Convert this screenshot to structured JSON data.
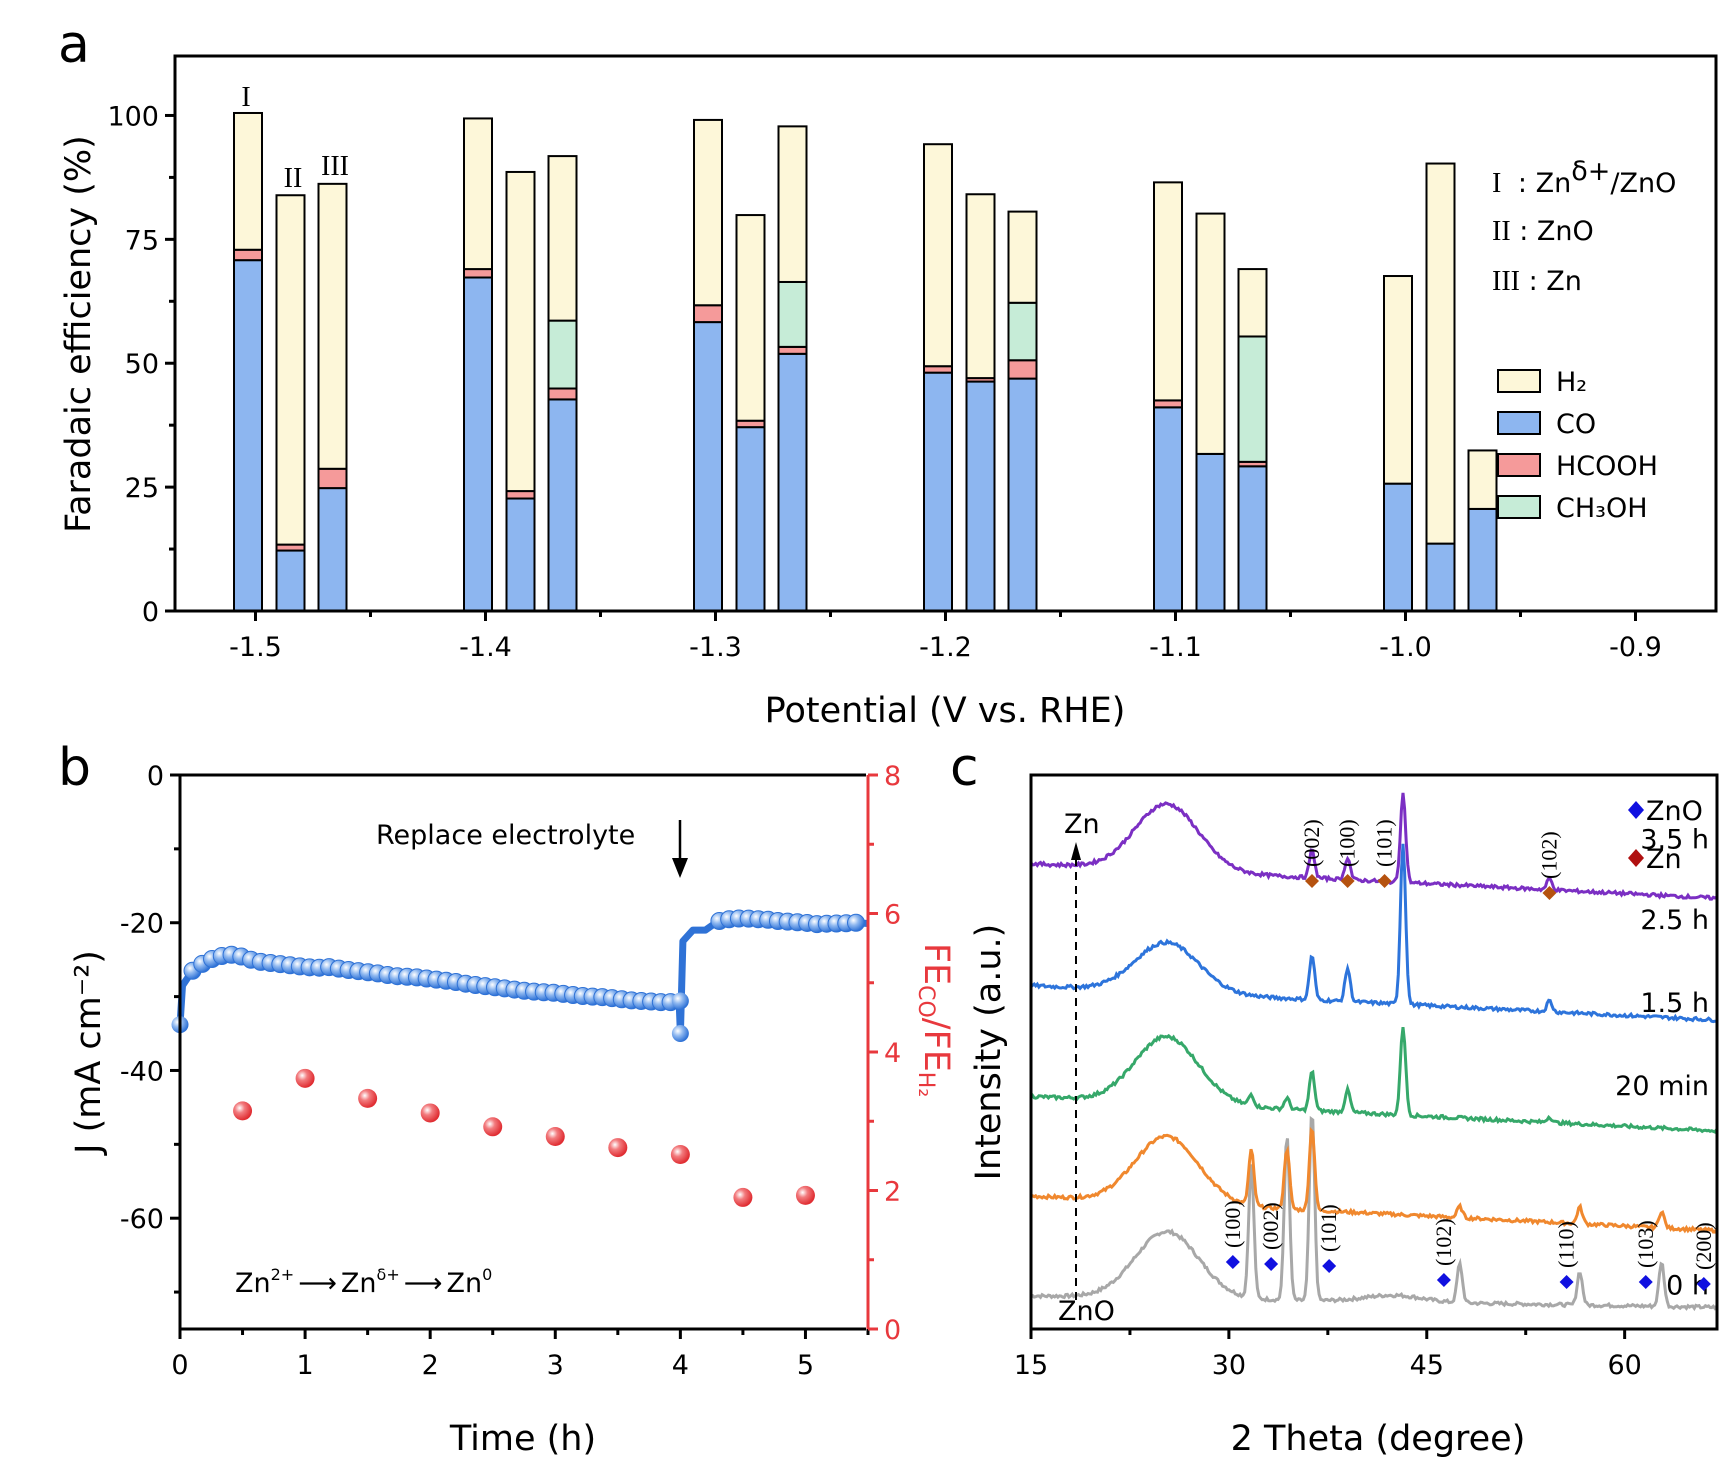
{
  "figure": {
    "panel_labels": [
      "a",
      "b",
      "c"
    ]
  },
  "chart_data": [
    {
      "panel": "a",
      "type": "bar",
      "stacked": true,
      "xlabel": "Potential (V vs. RHE)",
      "ylabel": "Faradaic efficiency (%)",
      "ylim": [
        0,
        112
      ],
      "xlim": [
        -1.535,
        -0.865
      ],
      "xticks": [
        "-1.5",
        "-1.4",
        "-1.3",
        "-1.2",
        "-1.1",
        "-1.0",
        "-0.9"
      ],
      "xtick_values": [
        -1.5,
        -1.4,
        -1.3,
        -1.2,
        -1.1,
        -1.0,
        -0.9
      ],
      "yticks": [
        "0",
        "25",
        "50",
        "75",
        "100"
      ],
      "ytick_values": [
        0,
        25,
        50,
        75,
        100
      ],
      "catalysts": [
        "I",
        "II",
        "III"
      ],
      "catalyst_legend": [
        {
          "roman": "I",
          "text": " : Zn",
          "sup": "δ+",
          "after": "/ZnO"
        },
        {
          "roman": "II",
          "text": " : ZnO",
          "sup": "",
          "after": ""
        },
        {
          "roman": "III",
          "text": " : Zn",
          "sup": "",
          "after": ""
        }
      ],
      "series_legend": [
        {
          "name": "H₂",
          "key": "H2",
          "color": "#fdf7d9"
        },
        {
          "name": "CO",
          "key": "CO",
          "color": "#8db6f0"
        },
        {
          "name": "HCOOH",
          "key": "HCOOH",
          "color": "#f59a9a"
        },
        {
          "name": "CH₃OH",
          "key": "CH3OH",
          "color": "#c6ecd7"
        }
      ],
      "stack_order": [
        "CO",
        "HCOOH",
        "CH3OH",
        "H2"
      ],
      "groups": [
        {
          "potential": -1.5,
          "bars": [
            {
              "catalyst": "I",
              "CO": 70.8,
              "HCOOH": 2.1,
              "CH3OH": 0,
              "H2": 27.6
            },
            {
              "catalyst": "II",
              "CO": 12.2,
              "HCOOH": 1.2,
              "CH3OH": 0,
              "H2": 70.5
            },
            {
              "catalyst": "III",
              "CO": 24.8,
              "HCOOH": 3.9,
              "CH3OH": 0,
              "H2": 57.5
            }
          ]
        },
        {
          "potential": -1.4,
          "bars": [
            {
              "catalyst": "I",
              "CO": 67.3,
              "HCOOH": 1.7,
              "CH3OH": 0,
              "H2": 30.4
            },
            {
              "catalyst": "II",
              "CO": 22.7,
              "HCOOH": 1.5,
              "CH3OH": 0,
              "H2": 64.4
            },
            {
              "catalyst": "III",
              "CO": 42.7,
              "HCOOH": 2.2,
              "CH3OH": 13.7,
              "H2": 33.2
            }
          ]
        },
        {
          "potential": -1.3,
          "bars": [
            {
              "catalyst": "I",
              "CO": 58.3,
              "HCOOH": 3.4,
              "CH3OH": 0,
              "H2": 37.4
            },
            {
              "catalyst": "II",
              "CO": 37.1,
              "HCOOH": 1.3,
              "CH3OH": 0,
              "H2": 41.5
            },
            {
              "catalyst": "III",
              "CO": 51.9,
              "HCOOH": 1.4,
              "CH3OH": 13.1,
              "H2": 31.4
            }
          ]
        },
        {
          "potential": -1.2,
          "bars": [
            {
              "catalyst": "I",
              "CO": 48.1,
              "HCOOH": 1.3,
              "CH3OH": 0,
              "H2": 44.8
            },
            {
              "catalyst": "II",
              "CO": 46.3,
              "HCOOH": 0.7,
              "CH3OH": 0,
              "H2": 37.1
            },
            {
              "catalyst": "III",
              "CO": 46.9,
              "HCOOH": 3.7,
              "CH3OH": 11.6,
              "H2": 18.4
            }
          ]
        },
        {
          "potential": -1.1,
          "bars": [
            {
              "catalyst": "I",
              "CO": 41.1,
              "HCOOH": 1.4,
              "CH3OH": 0,
              "H2": 44.0
            },
            {
              "catalyst": "II",
              "CO": 31.7,
              "HCOOH": 0,
              "CH3OH": 0,
              "H2": 48.5
            },
            {
              "catalyst": "III",
              "CO": 29.2,
              "HCOOH": 0.9,
              "CH3OH": 25.3,
              "H2": 13.6
            }
          ]
        },
        {
          "potential": -1.0,
          "bars": [
            {
              "catalyst": "I",
              "CO": 25.7,
              "HCOOH": 0,
              "CH3OH": 0,
              "H2": 41.9
            },
            {
              "catalyst": "II",
              "CO": 13.6,
              "HCOOH": 0,
              "CH3OH": 0,
              "H2": 76.7
            },
            {
              "catalyst": "III",
              "CO": 20.6,
              "HCOOH": 0,
              "CH3OH": 0,
              "H2": 11.8
            }
          ]
        }
      ]
    },
    {
      "panel": "b",
      "type": "line+scatter",
      "xlabel": "Time (h)",
      "ylabel_left": "J (mA cm⁻²)",
      "ylabel_right_main": "FE",
      "ylabel_right_sub1": "CO",
      "ylabel_right_mid": "/FE",
      "ylabel_right_sub2": "H₂",
      "xlim": [
        0,
        5.5
      ],
      "ylim_left": [
        -75,
        0
      ],
      "ylim_right": [
        0,
        8
      ],
      "xticks": [
        "0",
        "1",
        "2",
        "3",
        "4",
        "5"
      ],
      "xtick_values": [
        0,
        1,
        2,
        3,
        4,
        5
      ],
      "yticks_left": [
        "0",
        "-20",
        "-40",
        "-60"
      ],
      "ytick_values_left": [
        0,
        -20,
        -40,
        -60
      ],
      "yticks_right": [
        "0",
        "2",
        "4",
        "6",
        "8"
      ],
      "ytick_values_right": [
        0,
        2,
        4,
        6,
        8
      ],
      "right_axis_color": "#e8383d",
      "series": [
        {
          "name": "Current density",
          "axis": "left",
          "color": "#2f72d6",
          "x": [
            0,
            0.02,
            0.1,
            0.2,
            0.3,
            0.4,
            0.5,
            0.6,
            0.7,
            0.8,
            0.9,
            1.0,
            1.1,
            1.2,
            1.3,
            1.4,
            1.5,
            1.6,
            1.7,
            1.8,
            1.9,
            2.0,
            2.1,
            2.2,
            2.3,
            2.4,
            2.5,
            2.6,
            2.7,
            2.8,
            2.9,
            3.0,
            3.1,
            3.2,
            3.3,
            3.4,
            3.5,
            3.6,
            3.7,
            3.8,
            3.9,
            3.99,
            4.0,
            4.02,
            4.1,
            4.2,
            4.3,
            4.4,
            4.5,
            4.6,
            4.7,
            4.8,
            4.9,
            5.0,
            5.1,
            5.2,
            5.3,
            5.4,
            5.5
          ],
          "y": [
            -33.8,
            -28.5,
            -26.5,
            -25.3,
            -24.6,
            -24.3,
            -24.6,
            -25.2,
            -25.4,
            -25.6,
            -25.8,
            -26.0,
            -26.1,
            -26.0,
            -26.3,
            -26.5,
            -26.7,
            -26.9,
            -27.2,
            -27.3,
            -27.4,
            -27.6,
            -27.8,
            -28.0,
            -28.3,
            -28.5,
            -28.7,
            -28.9,
            -29.1,
            -29.3,
            -29.4,
            -29.5,
            -29.7,
            -29.9,
            -30.0,
            -30.1,
            -30.3,
            -30.5,
            -30.6,
            -30.7,
            -30.8,
            -30.6,
            -35.0,
            -22.5,
            -21.0,
            -21.0,
            -19.8,
            -19.5,
            -19.4,
            -19.5,
            -19.6,
            -19.8,
            -19.9,
            -20.0,
            -20.2,
            -20.1,
            -20.1,
            -20.0,
            -20.1
          ]
        },
        {
          "name": "FE_CO/FE_H2",
          "axis": "right",
          "color": "#e8383d",
          "x": [
            0.5,
            1.0,
            1.5,
            2.0,
            2.5,
            3.0,
            3.5,
            4.0,
            4.5,
            5.0
          ],
          "y": [
            3.15,
            3.62,
            3.33,
            3.12,
            2.92,
            2.78,
            2.62,
            2.52,
            1.9,
            1.93
          ]
        }
      ],
      "annotations": {
        "replace": "Replace electrolyte",
        "replace_x": 4.0,
        "reaction": {
          "a": "Zn",
          "a_sup": "2+",
          "b": "Zn",
          "b_sup": "δ+",
          "c": "Zn",
          "c_sup": "0"
        }
      }
    },
    {
      "panel": "c",
      "type": "line",
      "xlabel": "2 Theta (degree)",
      "ylabel": "Intensity (a.u.)",
      "xlim": [
        15,
        67
      ],
      "xticks": [
        "15",
        "30",
        "45",
        "60"
      ],
      "xtick_values": [
        15,
        30,
        45,
        60
      ],
      "minor_xticks": [
        22.5,
        37.5,
        52.5
      ],
      "legend": [
        {
          "name": "ZnO",
          "color": "#1010e0"
        },
        {
          "name": "Zn",
          "color": "#b01010"
        }
      ],
      "arrow_top_label": "Zn",
      "arrow_bottom_label": "ZnO",
      "zn_marker_color": "#b5520f",
      "zno_marker_color": "#1010e0",
      "series": [
        {
          "name": "3.5 h",
          "color": "#7b2fc3",
          "baseline": 0.84,
          "hump": 0.12,
          "peaks": [
            [
              36.3,
              0.05
            ],
            [
              39.0,
              0.04
            ],
            [
              43.2,
              0.16
            ],
            [
              54.3,
              0.02
            ]
          ]
        },
        {
          "name": "2.5 h",
          "color": "#2d74db",
          "baseline": 0.62,
          "hump": 0.09,
          "peaks": [
            [
              36.3,
              0.08
            ],
            [
              39.0,
              0.06
            ],
            [
              43.2,
              0.29
            ],
            [
              54.3,
              0.02
            ]
          ]
        },
        {
          "name": "1.5 h",
          "color": "#36a86a",
          "baseline": 0.42,
          "hump": 0.12,
          "peaks": [
            [
              31.7,
              0.02
            ],
            [
              34.4,
              0.02
            ],
            [
              36.3,
              0.07
            ],
            [
              39.0,
              0.04
            ],
            [
              43.2,
              0.16
            ],
            [
              54.3,
              0.01
            ]
          ]
        },
        {
          "name": "20 min",
          "color": "#f0882e",
          "baseline": 0.24,
          "hump": 0.12,
          "peaks": [
            [
              31.7,
              0.1
            ],
            [
              34.4,
              0.11
            ],
            [
              36.3,
              0.15
            ],
            [
              47.5,
              0.02
            ],
            [
              56.6,
              0.03
            ],
            [
              62.8,
              0.03
            ]
          ]
        },
        {
          "name": "0 h",
          "color": "#a8a8a8",
          "baseline": 0.06,
          "hump": 0.12,
          "peaks": [
            [
              31.7,
              0.24
            ],
            [
              34.4,
              0.3
            ],
            [
              36.3,
              0.34
            ],
            [
              47.5,
              0.07
            ],
            [
              56.6,
              0.06
            ],
            [
              62.8,
              0.08
            ],
            [
              67.9,
              0.01
            ]
          ]
        }
      ],
      "zn_peaks": [
        {
          "hkl": "(002)",
          "x": 36.3
        },
        {
          "hkl": "(100)",
          "x": 39.0
        },
        {
          "hkl": "(101)",
          "x": 41.8
        },
        {
          "hkl": "(102)",
          "x": 54.3
        }
      ],
      "zno_peaks": [
        {
          "hkl": "(100)",
          "x": 30.3
        },
        {
          "hkl": "(002)",
          "x": 33.2
        },
        {
          "hkl": "(101)",
          "x": 37.6
        },
        {
          "hkl": "(102)",
          "x": 46.3
        },
        {
          "hkl": "(110)",
          "x": 55.6
        },
        {
          "hkl": "(103)",
          "x": 61.6
        },
        {
          "hkl": "(200)",
          "x": 66.0
        }
      ]
    }
  ]
}
